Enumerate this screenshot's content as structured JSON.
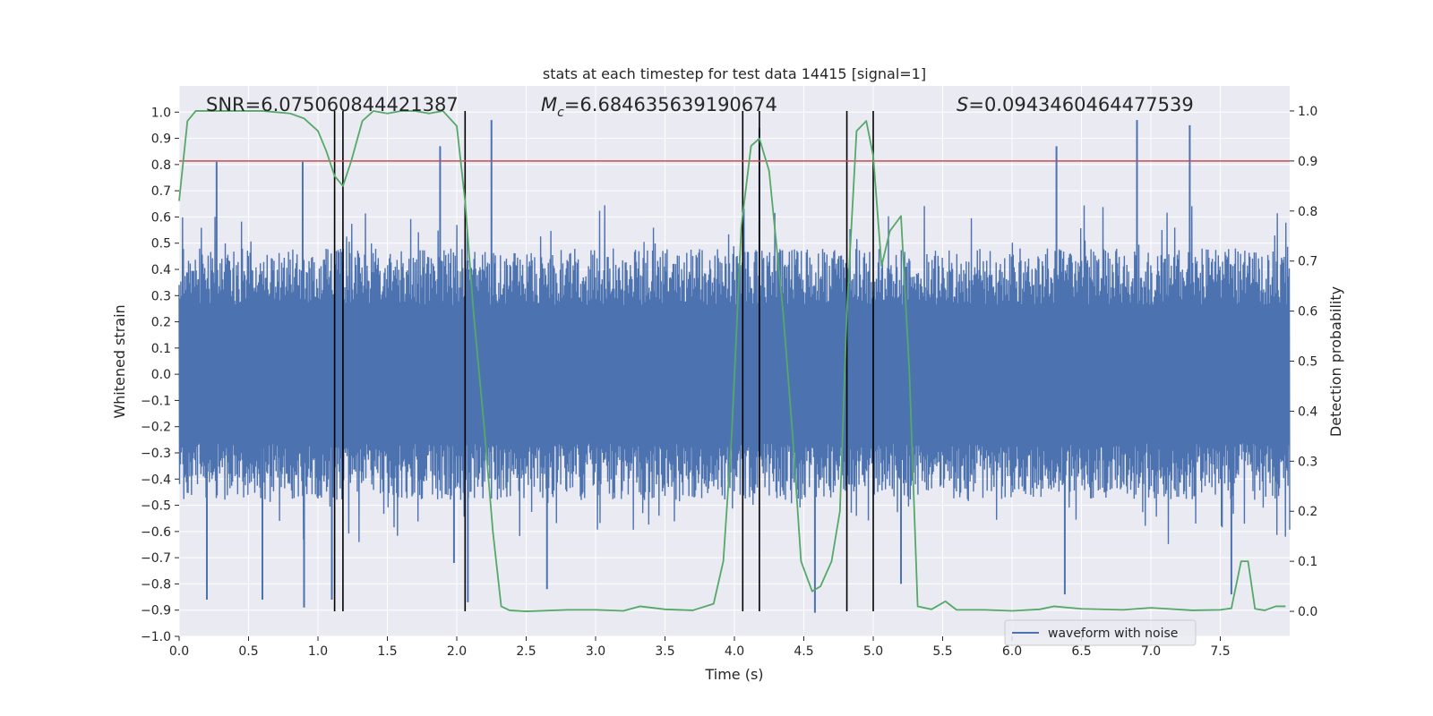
{
  "chart_data": {
    "type": "line",
    "title": "stats at each timestep for test data 14415 [signal=1]",
    "xlabel": "Time (s)",
    "ylabel": "Whitened strain",
    "y2label": "Detection probability",
    "xlim": [
      0.0,
      8.0
    ],
    "ylim": [
      -1.0,
      1.1
    ],
    "y2lim": [
      -0.05,
      1.05
    ],
    "xticks": [
      0.0,
      0.5,
      1.0,
      1.5,
      2.0,
      2.5,
      3.0,
      3.5,
      4.0,
      4.5,
      5.0,
      5.5,
      6.0,
      6.5,
      7.0,
      7.5
    ],
    "yticks": [
      -1.0,
      -0.9,
      -0.8,
      -0.7,
      -0.6,
      -0.5,
      -0.4,
      -0.3,
      -0.2,
      -0.1,
      0.0,
      0.1,
      0.2,
      0.3,
      0.4,
      0.5,
      0.6,
      0.7,
      0.8,
      0.9,
      1.0
    ],
    "y2ticks": [
      0.0,
      0.1,
      0.2,
      0.3,
      0.4,
      0.5,
      0.6,
      0.7,
      0.8,
      0.9,
      1.0
    ],
    "grid": true,
    "legend": {
      "position": "lower-right",
      "entries": [
        "waveform with noise"
      ]
    },
    "annotations": {
      "snr": "SNR=6.075060844421387",
      "mc_symbol": "M",
      "mc_sub": "c",
      "mc_value": "=6.684635639190674",
      "s_symbol": "S",
      "s_value": "=0.0943460464477539"
    },
    "threshold": {
      "axis": "y2",
      "value": 0.9,
      "color": "#c44e52"
    },
    "vertical_lines": [
      1.12,
      1.18,
      2.06,
      4.06,
      4.18,
      4.81,
      5.0
    ],
    "colors": {
      "waveform": "#4c72b0",
      "probability": "#55a868",
      "threshold": "#c44e52",
      "vlines": "#000000",
      "background": "#eaeaf2"
    },
    "series": [
      {
        "name": "waveform with noise",
        "axis": "y",
        "style": "noise",
        "duration": 8.0,
        "amplitude": 0.48,
        "peaks_up": [
          [
            0.27,
            0.81
          ],
          [
            0.89,
            0.81
          ],
          [
            1.88,
            0.87
          ],
          [
            2.25,
            0.97
          ],
          [
            4.18,
            0.94
          ],
          [
            6.32,
            0.87
          ],
          [
            6.9,
            0.97
          ],
          [
            7.28,
            0.95
          ]
        ],
        "peaks_down": [
          [
            0.2,
            -0.86
          ],
          [
            0.6,
            -0.86
          ],
          [
            0.9,
            -0.89
          ],
          [
            1.1,
            -0.86
          ],
          [
            1.98,
            -0.72
          ],
          [
            2.08,
            -0.87
          ],
          [
            2.65,
            -0.82
          ],
          [
            4.58,
            -0.91
          ],
          [
            5.2,
            -0.8
          ],
          [
            6.38,
            -0.84
          ],
          [
            7.58,
            -0.84
          ]
        ]
      },
      {
        "name": "detection probability",
        "axis": "y2",
        "style": "line",
        "x": [
          0.0,
          0.06,
          0.12,
          0.2,
          0.4,
          0.6,
          0.8,
          0.9,
          1.0,
          1.06,
          1.12,
          1.18,
          1.24,
          1.32,
          1.4,
          1.5,
          1.6,
          1.7,
          1.8,
          1.9,
          2.0,
          2.06,
          2.12,
          2.2,
          2.26,
          2.32,
          2.38,
          2.5,
          2.8,
          3.0,
          3.2,
          3.32,
          3.5,
          3.7,
          3.85,
          3.92,
          3.98,
          4.05,
          4.12,
          4.18,
          4.25,
          4.35,
          4.42,
          4.48,
          4.56,
          4.62,
          4.7,
          4.76,
          4.81,
          4.88,
          4.95,
          5.0,
          5.06,
          5.12,
          5.2,
          5.26,
          5.32,
          5.42,
          5.52,
          5.6,
          5.8,
          6.0,
          6.2,
          6.3,
          6.5,
          6.8,
          7.0,
          7.3,
          7.5,
          7.58,
          7.65,
          7.7,
          7.75,
          7.82,
          7.9,
          7.97
        ],
        "y": [
          0.82,
          0.98,
          1.0,
          1.0,
          1.0,
          1.0,
          0.995,
          0.985,
          0.96,
          0.92,
          0.87,
          0.85,
          0.9,
          0.98,
          1.0,
          0.995,
          1.0,
          1.0,
          0.995,
          1.0,
          0.97,
          0.82,
          0.6,
          0.36,
          0.16,
          0.01,
          0.002,
          0.0,
          0.003,
          0.003,
          0.001,
          0.01,
          0.004,
          0.002,
          0.015,
          0.1,
          0.35,
          0.77,
          0.93,
          0.945,
          0.88,
          0.6,
          0.35,
          0.1,
          0.04,
          0.05,
          0.1,
          0.2,
          0.6,
          0.96,
          0.98,
          0.91,
          0.69,
          0.76,
          0.79,
          0.48,
          0.01,
          0.004,
          0.02,
          0.003,
          0.003,
          0.001,
          0.004,
          0.01,
          0.005,
          0.003,
          0.007,
          0.002,
          0.003,
          0.006,
          0.1,
          0.1,
          0.005,
          0.002,
          0.01,
          0.01
        ]
      }
    ]
  }
}
